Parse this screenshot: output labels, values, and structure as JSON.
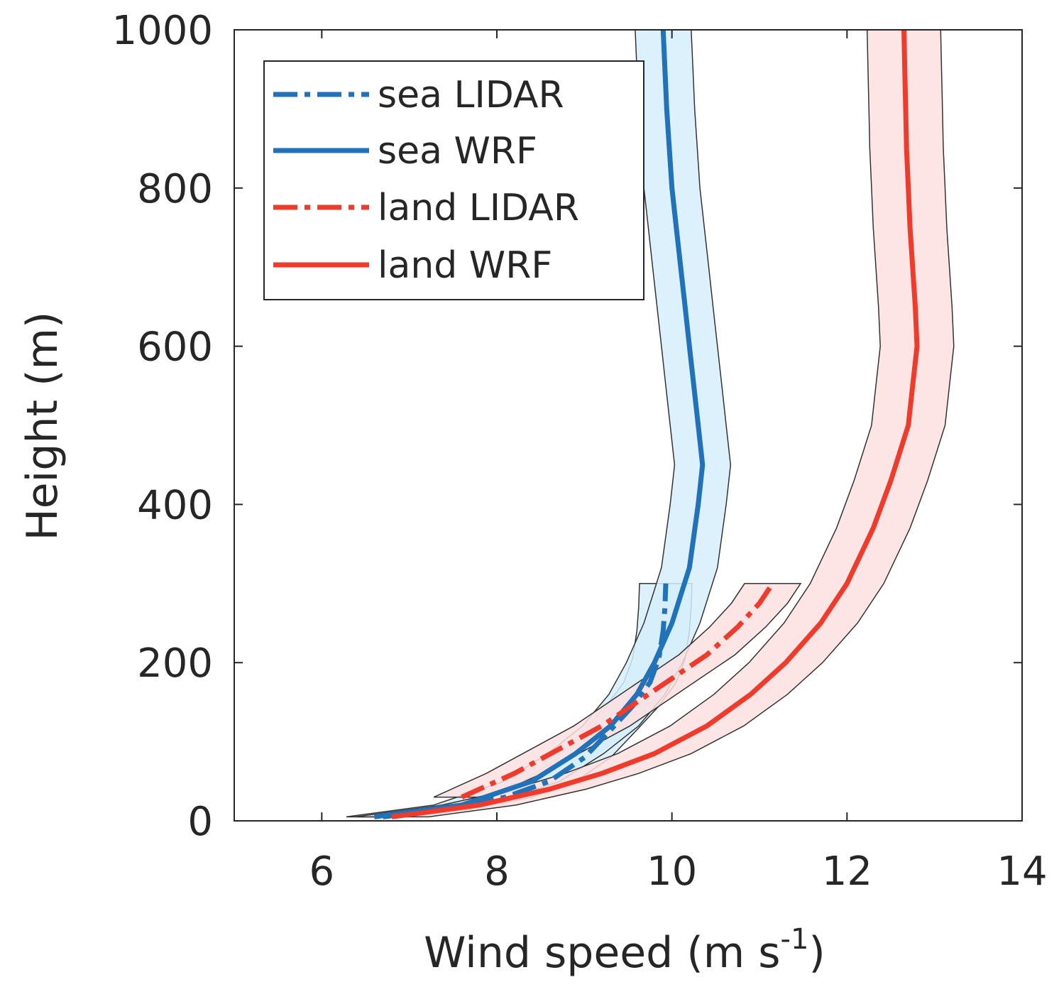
{
  "chart_data": {
    "type": "line",
    "title": "",
    "xlabel": "Wind speed (m s",
    "xlabel_sup": "-1",
    "xlabel_end": ")",
    "ylabel": "Height (m)",
    "xlim": [
      5,
      14
    ],
    "ylim": [
      0,
      1000
    ],
    "xticks": [
      6,
      8,
      10,
      12,
      14
    ],
    "yticks": [
      0,
      200,
      400,
      600,
      800,
      1000
    ],
    "grid": false,
    "legend_position": "top-left",
    "colors": {
      "sea": "#2172b8",
      "land": "#ee3b2c",
      "sea_band": "#d6eefa",
      "land_band": "#fde0e0"
    },
    "series": [
      {
        "name": "sea LIDAR",
        "color": "#2172b8",
        "dash": "dashdot",
        "points": [
          [
            6.7,
            5
          ],
          [
            7.4,
            15
          ],
          [
            8.1,
            30
          ],
          [
            8.6,
            50
          ],
          [
            9.0,
            80
          ],
          [
            9.3,
            115
          ],
          [
            9.55,
            145
          ],
          [
            9.75,
            175
          ],
          [
            9.85,
            205
          ],
          [
            9.9,
            240
          ],
          [
            9.92,
            270
          ],
          [
            9.93,
            300
          ]
        ],
        "band_halfwidth": 0.3
      },
      {
        "name": "sea WRF",
        "color": "#2172b8",
        "dash": "solid",
        "points": [
          [
            6.6,
            5
          ],
          [
            7.6,
            20
          ],
          [
            8.4,
            50
          ],
          [
            8.9,
            85
          ],
          [
            9.3,
            120
          ],
          [
            9.6,
            160
          ],
          [
            9.8,
            200
          ],
          [
            10.0,
            250
          ],
          [
            10.2,
            320
          ],
          [
            10.3,
            400
          ],
          [
            10.35,
            450
          ],
          [
            10.3,
            500
          ],
          [
            10.25,
            550
          ],
          [
            10.2,
            600
          ],
          [
            10.15,
            650
          ],
          [
            10.1,
            700
          ],
          [
            10.05,
            750
          ],
          [
            10.0,
            800
          ],
          [
            9.97,
            850
          ],
          [
            9.94,
            900
          ],
          [
            9.92,
            950
          ],
          [
            9.9,
            1000
          ]
        ],
        "band_halfwidth": 0.32
      },
      {
        "name": "land LIDAR",
        "color": "#ee3b2c",
        "dash": "dashdot",
        "points": [
          [
            7.6,
            30
          ],
          [
            8.2,
            60
          ],
          [
            8.7,
            90
          ],
          [
            9.2,
            120
          ],
          [
            9.6,
            150
          ],
          [
            10.0,
            180
          ],
          [
            10.4,
            210
          ],
          [
            10.75,
            245
          ],
          [
            11.0,
            275
          ],
          [
            11.15,
            300
          ]
        ],
        "band_halfwidth": 0.32
      },
      {
        "name": "land WRF",
        "color": "#ee3b2c",
        "dash": "solid",
        "points": [
          [
            6.8,
            5
          ],
          [
            7.8,
            20
          ],
          [
            8.6,
            40
          ],
          [
            9.2,
            60
          ],
          [
            9.8,
            85
          ],
          [
            10.4,
            120
          ],
          [
            10.9,
            160
          ],
          [
            11.3,
            200
          ],
          [
            11.7,
            250
          ],
          [
            12.0,
            300
          ],
          [
            12.3,
            370
          ],
          [
            12.5,
            430
          ],
          [
            12.7,
            500
          ],
          [
            12.75,
            550
          ],
          [
            12.8,
            600
          ],
          [
            12.78,
            650
          ],
          [
            12.75,
            700
          ],
          [
            12.72,
            750
          ],
          [
            12.7,
            800
          ],
          [
            12.68,
            850
          ],
          [
            12.67,
            900
          ],
          [
            12.66,
            950
          ],
          [
            12.65,
            1000
          ]
        ],
        "band_halfwidth": 0.42
      }
    ]
  }
}
